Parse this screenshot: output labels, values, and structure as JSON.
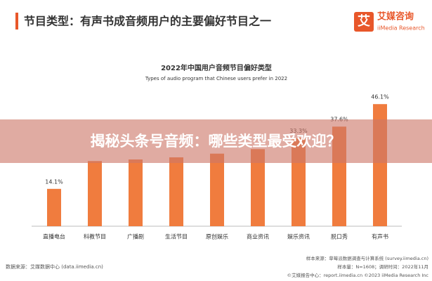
{
  "header": {
    "title": "节目类型：有声书成音频用户的主要偏好节目之一",
    "logo_glyph": "艾",
    "logo_name": "艾媒咨询",
    "logo_sub": "iiMedia Research"
  },
  "chart_data": {
    "type": "bar",
    "title": "2022年中国用户音频节目偏好类型",
    "subtitle": "Types of audio program that Chinese users prefer in 2022",
    "categories": [
      "直播电台",
      "科教节目",
      "广播剧",
      "生活节目",
      "原创娱乐",
      "商业资讯",
      "娱乐资讯",
      "脱口秀",
      "有声书"
    ],
    "values": [
      14.1,
      24.6,
      25.2,
      26.0,
      27.4,
      29.1,
      33.3,
      37.6,
      46.1
    ],
    "value_labels": [
      "14.1%",
      null,
      null,
      null,
      null,
      null,
      "33.3%",
      "37.6%",
      "46.1%"
    ],
    "color": "#f07c3e"
  },
  "footer": {
    "source": "数据来源：艾媒数据中心 (data.iimedia.cn)",
    "sample_source": "样本来源：草莓派数据调查与计算系统 (survey.iimedia.cn)",
    "sample_size": "样本量：N=1608；调研时间：2022年11月",
    "copyright": "©艾媒报告中心：report.iimedia.cn ©2023 iiMedia Research Inc"
  },
  "banner": {
    "text": "揭秘头条号音频：哪些类型最受欢迎？"
  }
}
